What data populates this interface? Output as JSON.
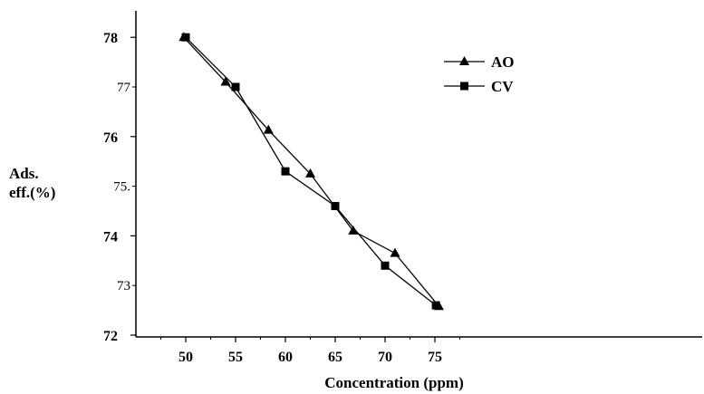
{
  "chart_data": {
    "type": "line",
    "xlabel": "Concentration (ppm)",
    "ylabel_line1": "Ads.",
    "ylabel_line2": "eff.(%)",
    "xlim": [
      47.5,
      77.5
    ],
    "ylim": [
      72,
      78.5
    ],
    "xticks": [
      "50",
      "55",
      "60",
      "65",
      "70",
      "75"
    ],
    "yticks_major": [
      "72",
      "74",
      "76",
      "78"
    ],
    "yticks_minor": [
      "73",
      "75.",
      "77"
    ],
    "legend_position": "top-right",
    "series": [
      {
        "name": "AO",
        "marker": "triangle",
        "points": [
          [
            49.8,
            78.0
          ],
          [
            54.0,
            77.1
          ],
          [
            58.3,
            76.13
          ],
          [
            62.5,
            75.25
          ],
          [
            66.8,
            74.1
          ],
          [
            71.0,
            73.65
          ],
          [
            75.4,
            72.58
          ]
        ]
      },
      {
        "name": "CV",
        "marker": "square",
        "points": [
          [
            50.0,
            78.0
          ],
          [
            55.0,
            77.0
          ],
          [
            60.0,
            75.3
          ],
          [
            65.0,
            74.6
          ],
          [
            70.0,
            73.4
          ],
          [
            75.1,
            72.6
          ]
        ]
      }
    ]
  }
}
